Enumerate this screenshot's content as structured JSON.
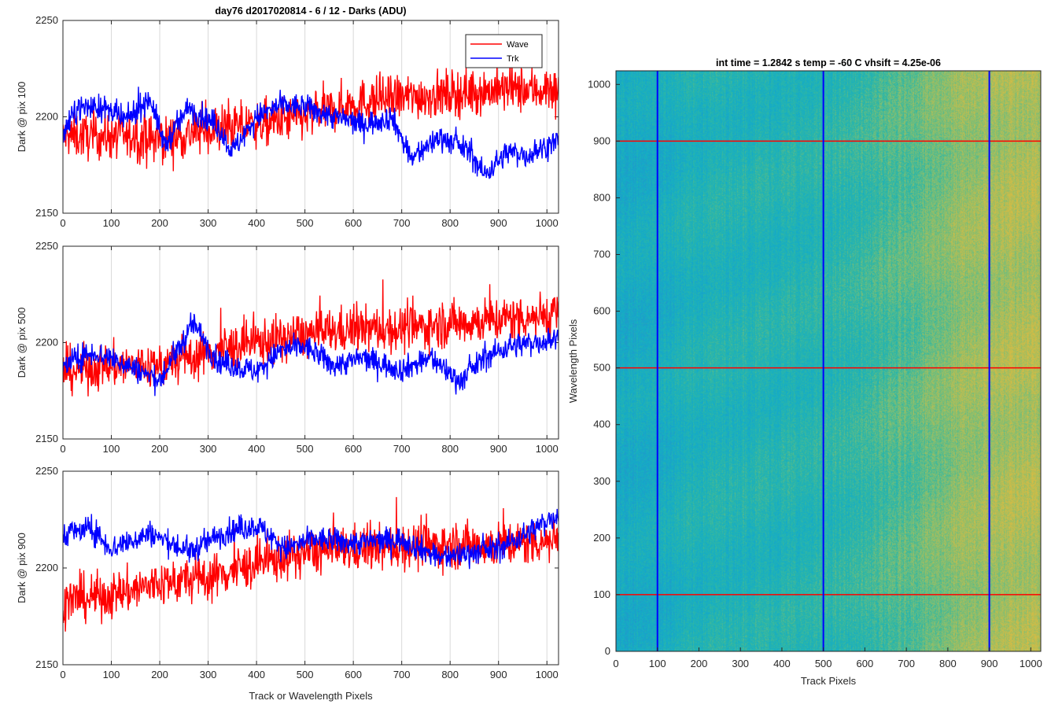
{
  "colors": {
    "wave": "#ff0000",
    "trk": "#0000ff",
    "grid": "#d9d9d9"
  },
  "chart_data": [
    {
      "type": "line",
      "title": "day76 d2017020814 - 6 / 12 - Darks (ADU)",
      "ylabel": "Dark @ pix 100",
      "xlabel": "",
      "xlim": [
        0,
        1024
      ],
      "ylim": [
        2150,
        2250
      ],
      "x_ticks": [
        "0",
        "100",
        "200",
        "300",
        "400",
        "500",
        "600",
        "700",
        "800",
        "900",
        "1000"
      ],
      "y_ticks": [
        "2150",
        "2200",
        "2250"
      ],
      "grid": "vertical",
      "legend": {
        "placement": "top-right",
        "entries": [
          "Wave",
          "Trk"
        ]
      },
      "series": [
        {
          "name": "Wave",
          "color": "#ff0000",
          "anchors": [
            [
              0,
              2190
            ],
            [
              100,
              2190
            ],
            [
              200,
              2188
            ],
            [
              300,
              2193
            ],
            [
              400,
              2196
            ],
            [
              500,
              2200
            ],
            [
              600,
              2207
            ],
            [
              700,
              2210
            ],
            [
              800,
              2212
            ],
            [
              900,
              2214
            ],
            [
              1024,
              2214
            ]
          ],
          "noise": 11
        },
        {
          "name": "Trk",
          "color": "#0000ff",
          "anchors": [
            [
              0,
              2190
            ],
            [
              30,
              2205
            ],
            [
              80,
              2205
            ],
            [
              130,
              2198
            ],
            [
              180,
              2210
            ],
            [
              210,
              2185
            ],
            [
              260,
              2205
            ],
            [
              320,
              2195
            ],
            [
              350,
              2182
            ],
            [
              400,
              2200
            ],
            [
              450,
              2206
            ],
            [
              500,
              2205
            ],
            [
              560,
              2200
            ],
            [
              620,
              2196
            ],
            [
              680,
              2200
            ],
            [
              720,
              2178
            ],
            [
              780,
              2190
            ],
            [
              840,
              2182
            ],
            [
              870,
              2170
            ],
            [
              920,
              2182
            ],
            [
              960,
              2180
            ],
            [
              1024,
              2188
            ]
          ],
          "noise": 6
        }
      ]
    },
    {
      "type": "line",
      "ylabel": "Dark @ pix 500",
      "xlabel": "",
      "xlim": [
        0,
        1024
      ],
      "ylim": [
        2150,
        2250
      ],
      "x_ticks": [
        "0",
        "100",
        "200",
        "300",
        "400",
        "500",
        "600",
        "700",
        "800",
        "900",
        "1000"
      ],
      "y_ticks": [
        "2150",
        "2200",
        "2250"
      ],
      "grid": "vertical",
      "series": [
        {
          "name": "Wave",
          "color": "#ff0000",
          "anchors": [
            [
              0,
              2185
            ],
            [
              100,
              2188
            ],
            [
              200,
              2188
            ],
            [
              300,
              2195
            ],
            [
              400,
              2200
            ],
            [
              500,
              2204
            ],
            [
              600,
              2207
            ],
            [
              700,
              2207
            ],
            [
              800,
              2210
            ],
            [
              900,
              2212
            ],
            [
              1024,
              2215
            ]
          ],
          "noise": 11
        },
        {
          "name": "Trk",
          "color": "#0000ff",
          "anchors": [
            [
              0,
              2188
            ],
            [
              60,
              2195
            ],
            [
              120,
              2190
            ],
            [
              200,
              2180
            ],
            [
              270,
              2210
            ],
            [
              320,
              2190
            ],
            [
              400,
              2185
            ],
            [
              450,
              2196
            ],
            [
              500,
              2198
            ],
            [
              560,
              2188
            ],
            [
              620,
              2192
            ],
            [
              700,
              2186
            ],
            [
              760,
              2192
            ],
            [
              820,
              2180
            ],
            [
              870,
              2192
            ],
            [
              920,
              2198
            ],
            [
              1024,
              2202
            ]
          ],
          "noise": 6
        }
      ]
    },
    {
      "type": "line",
      "ylabel": "Dark @ pix 900",
      "xlabel": "Track or Wavelength Pixels",
      "xlim": [
        0,
        1024
      ],
      "ylim": [
        2150,
        2250
      ],
      "x_ticks": [
        "0",
        "100",
        "200",
        "300",
        "400",
        "500",
        "600",
        "700",
        "800",
        "900",
        "1000"
      ],
      "y_ticks": [
        "2150",
        "2200",
        "2250"
      ],
      "grid": "vertical",
      "series": [
        {
          "name": "Wave",
          "color": "#ff0000",
          "anchors": [
            [
              0,
              2183
            ],
            [
              100,
              2186
            ],
            [
              200,
              2192
            ],
            [
              300,
              2195
            ],
            [
              400,
              2202
            ],
            [
              500,
              2208
            ],
            [
              600,
              2210
            ],
            [
              700,
              2211
            ],
            [
              800,
              2212
            ],
            [
              900,
              2212
            ],
            [
              1024,
              2215
            ]
          ],
          "noise": 11
        },
        {
          "name": "Trk",
          "color": "#0000ff",
          "anchors": [
            [
              0,
              2218
            ],
            [
              60,
              2220
            ],
            [
              100,
              2210
            ],
            [
              180,
              2218
            ],
            [
              260,
              2208
            ],
            [
              330,
              2218
            ],
            [
              400,
              2222
            ],
            [
              460,
              2210
            ],
            [
              520,
              2215
            ],
            [
              600,
              2213
            ],
            [
              700,
              2215
            ],
            [
              780,
              2205
            ],
            [
              840,
              2208
            ],
            [
              900,
              2210
            ],
            [
              960,
              2218
            ],
            [
              1024,
              2228
            ]
          ],
          "noise": 6
        }
      ]
    },
    {
      "type": "heatmap",
      "title": "int time = 1.2842 s    temp = -60 C    vhsift = 4.25e-06",
      "xlabel": "Track Pixels",
      "ylabel": "Wavelength Pixels",
      "xlim": [
        0,
        1024
      ],
      "ylim": [
        0,
        1024
      ],
      "x_ticks": [
        "0",
        "100",
        "200",
        "300",
        "400",
        "500",
        "600",
        "700",
        "800",
        "900",
        "1000"
      ],
      "y_ticks": [
        "0",
        "100",
        "200",
        "300",
        "400",
        "500",
        "600",
        "700",
        "800",
        "900",
        "1000"
      ],
      "colormap": "parula",
      "vertical_markers": {
        "x": [
          100,
          500,
          900
        ],
        "color": "#0000ff"
      },
      "horizontal_markers": {
        "y": [
          100,
          500,
          900
        ],
        "color": "#ff0000"
      }
    }
  ]
}
